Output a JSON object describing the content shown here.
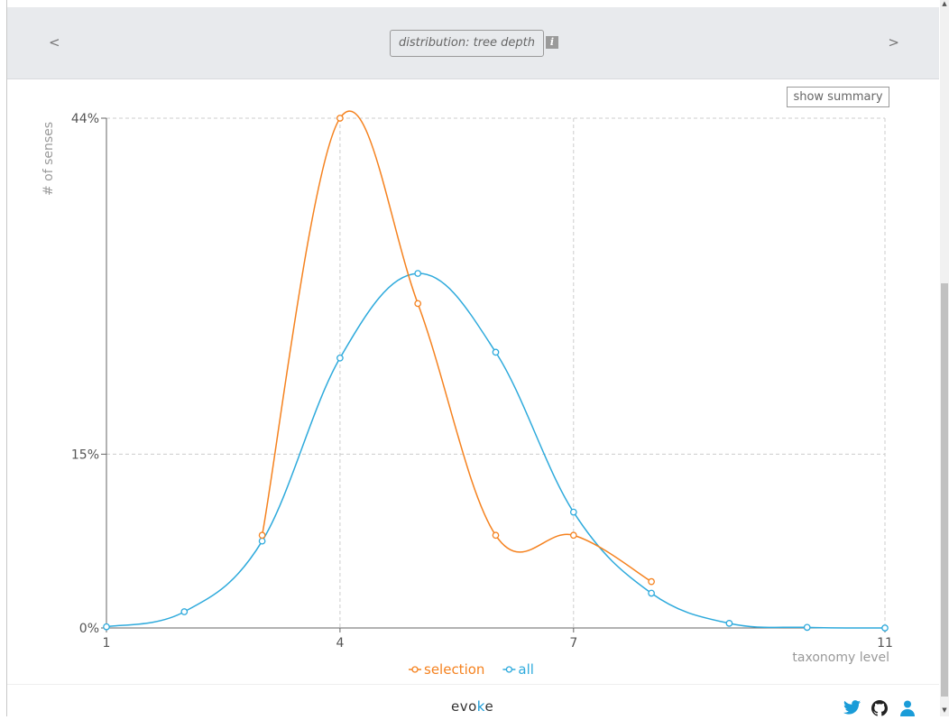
{
  "header": {
    "prev_label": "<",
    "next_label": ">",
    "view_title": "distribution: tree depth",
    "info_label": "i"
  },
  "summary_button": "show summary",
  "chart_data": {
    "type": "line",
    "ylabel": "# of senses",
    "xlabel": "taxonomy level",
    "xlim": [
      1,
      11
    ],
    "ylim": [
      0,
      44
    ],
    "x_ticks": [
      "1",
      "4",
      "7",
      "11"
    ],
    "y_ticks": [
      "0%",
      "15%",
      "44%"
    ],
    "grid": true,
    "legend_position": "bottom-center",
    "series": [
      {
        "name": "selection",
        "color": "#f5821f",
        "x": [
          3,
          4,
          5,
          6,
          7,
          8
        ],
        "y": [
          8,
          44,
          28,
          8,
          8,
          4
        ]
      },
      {
        "name": "all",
        "color": "#2eaadc",
        "x": [
          1,
          2,
          3,
          4,
          5,
          6,
          7,
          8,
          9,
          10,
          11
        ],
        "y": [
          0.1,
          1.4,
          7.5,
          23.3,
          30.6,
          23.8,
          10,
          3,
          0.4,
          0.05,
          0
        ]
      }
    ]
  },
  "footer": {
    "brand_prefix": "evo",
    "brand_accent": "k",
    "brand_suffix": "e",
    "icons": [
      "twitter-icon",
      "github-icon",
      "user-icon"
    ]
  }
}
